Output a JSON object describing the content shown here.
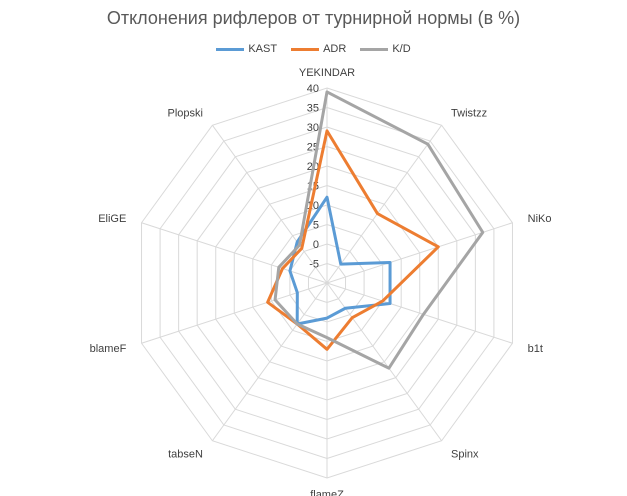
{
  "chart_data": {
    "type": "radar",
    "title": "Отклонения рифлеров от турнирной нормы (в %)",
    "categories": [
      "YEKINDAR",
      "Twistzz",
      "NiKo",
      "b1t",
      "Spinx",
      "flameZ",
      "tabseN",
      "blameF",
      "EliGE",
      "Plopski"
    ],
    "rlim": [
      -10,
      40
    ],
    "ticks": [
      40,
      35,
      30,
      25,
      20,
      15,
      10,
      5,
      0,
      -5
    ],
    "tick_labels": [
      "40",
      "35",
      "30",
      "25",
      "20",
      "15",
      "10",
      "5",
      "0",
      "-5"
    ],
    "series": [
      {
        "name": "KAST",
        "color": "#5B9BD5",
        "values": [
          12,
          -4,
          7,
          7,
          -2,
          -1,
          3,
          -2,
          0,
          3
        ]
      },
      {
        "name": "ADR",
        "color": "#ED7D31",
        "values": [
          29,
          12,
          20,
          5,
          1,
          7,
          3,
          6,
          2,
          1
        ]
      },
      {
        "name": "K/D",
        "color": "#A5A5A5",
        "values": [
          39,
          34,
          32,
          16,
          17,
          4,
          3,
          4,
          3,
          2
        ]
      }
    ],
    "legend_position": "top",
    "grid": true
  }
}
